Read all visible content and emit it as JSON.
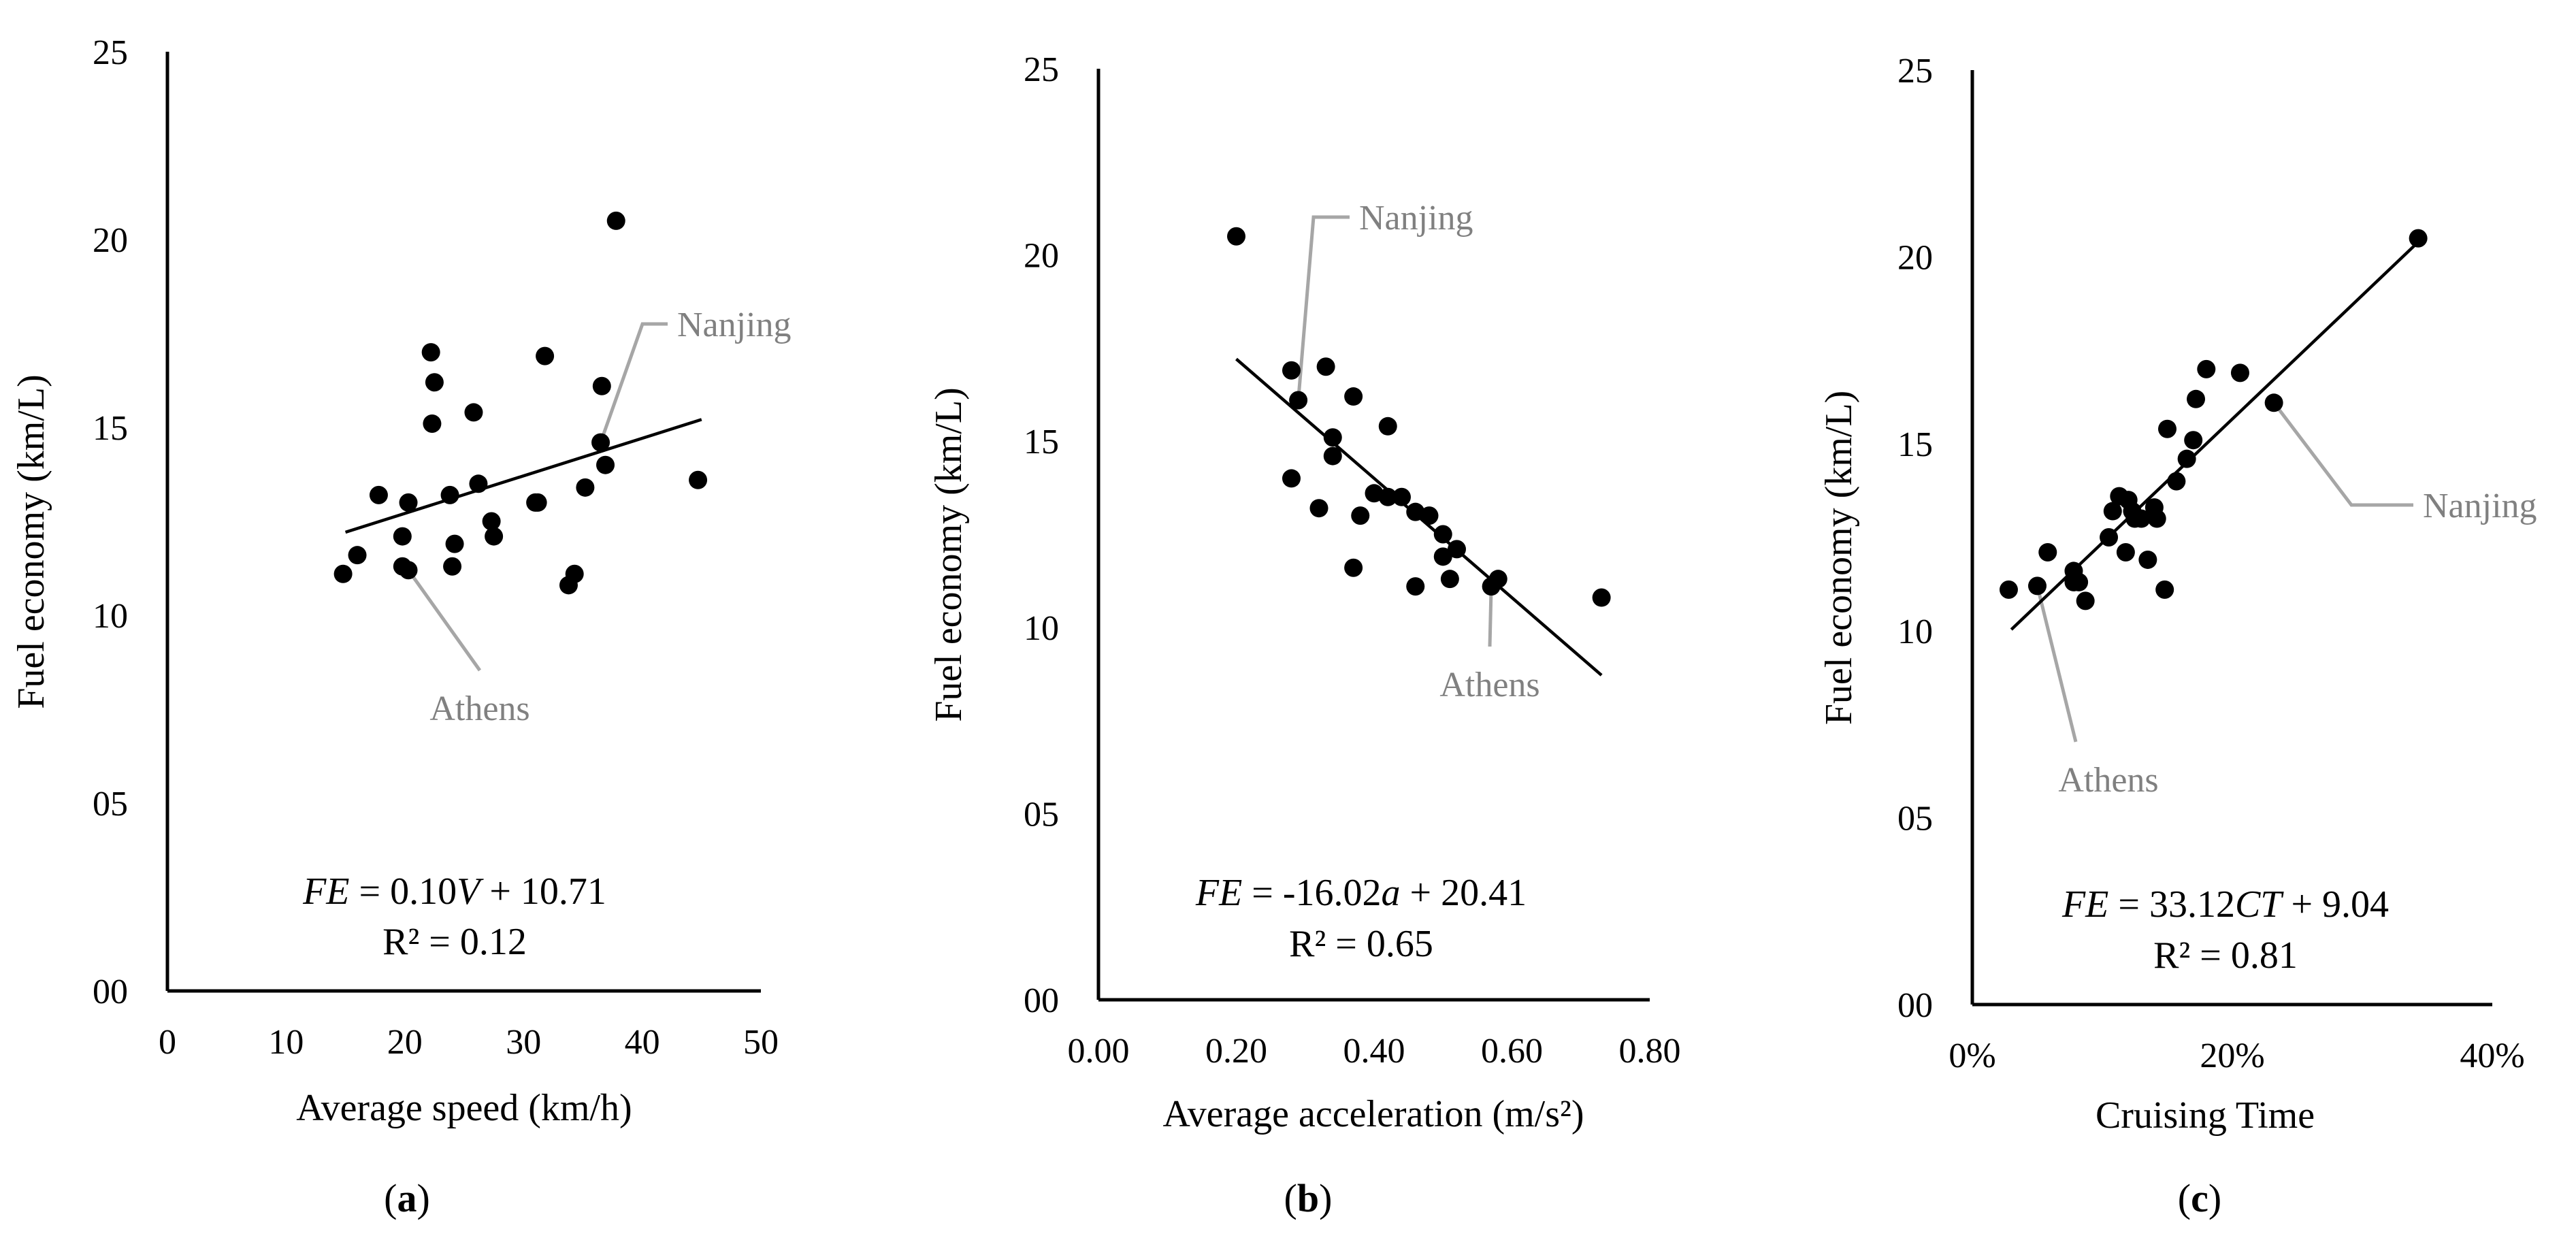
{
  "chart_data": [
    {
      "type": "scatter",
      "panel_label": "a",
      "title": "",
      "xlabel": "Average speed (km/h)",
      "ylabel": "Fuel economy (km/L)",
      "xlim": [
        0,
        50
      ],
      "ylim": [
        0,
        25
      ],
      "x_ticks": [
        0,
        10,
        20,
        30,
        40,
        50
      ],
      "x_tick_labels": [
        "0",
        "10",
        "20",
        "30",
        "40",
        "50"
      ],
      "y_ticks": [
        0,
        5,
        10,
        15,
        20,
        25
      ],
      "y_tick_labels": [
        "00",
        "05",
        "10",
        "15",
        "20",
        "25"
      ],
      "points": [
        [
          14.8,
          11.1
        ],
        [
          16.0,
          11.6
        ],
        [
          17.8,
          13.2
        ],
        [
          19.8,
          12.1
        ],
        [
          19.8,
          11.3
        ],
        [
          20.3,
          11.2
        ],
        [
          20.3,
          13.0
        ],
        [
          22.2,
          17.0
        ],
        [
          22.3,
          15.1
        ],
        [
          22.5,
          16.2
        ],
        [
          23.8,
          13.2
        ],
        [
          24.0,
          11.3
        ],
        [
          24.2,
          11.9
        ],
        [
          25.8,
          15.4
        ],
        [
          26.2,
          13.5
        ],
        [
          27.3,
          12.5
        ],
        [
          27.5,
          12.1
        ],
        [
          31.0,
          13.0
        ],
        [
          31.2,
          13.0
        ],
        [
          31.8,
          16.9
        ],
        [
          33.8,
          10.8
        ],
        [
          34.3,
          11.1
        ],
        [
          35.2,
          13.4
        ],
        [
          36.5,
          14.6
        ],
        [
          36.6,
          16.1
        ],
        [
          36.9,
          14.0
        ],
        [
          37.8,
          20.5
        ],
        [
          44.7,
          13.6
        ]
      ],
      "trendline": {
        "slope": 0.1,
        "intercept": 10.71,
        "x_range": [
          15,
          45
        ]
      },
      "equation": {
        "lhs": "FE",
        "mid": " = 0.10",
        "var": "V",
        "rhs": " + 10.71"
      },
      "r_squared": "R² = 0.12",
      "annotations": [
        {
          "text": "Nanjing",
          "point": [
            36.5,
            14.6
          ]
        },
        {
          "text": "Athens",
          "point": [
            20.3,
            11.2
          ]
        }
      ]
    },
    {
      "type": "scatter",
      "panel_label": "b",
      "title": "",
      "xlabel": "Average acceleration (m/s²)",
      "ylabel": "Fuel economy (km/L)",
      "xlim": [
        0,
        0.8
      ],
      "ylim": [
        0,
        25
      ],
      "x_ticks": [
        0,
        0.2,
        0.4,
        0.6,
        0.8
      ],
      "x_tick_labels": [
        "0.00",
        "0.20",
        "0.40",
        "0.60",
        "0.80"
      ],
      "y_ticks": [
        0,
        5,
        10,
        15,
        20,
        25
      ],
      "y_tick_labels": [
        "00",
        "05",
        "10",
        "15",
        "20",
        "25"
      ],
      "points": [
        [
          0.2,
          20.5
        ],
        [
          0.28,
          16.9
        ],
        [
          0.29,
          16.1
        ],
        [
          0.28,
          14.0
        ],
        [
          0.32,
          13.2
        ],
        [
          0.33,
          17.0
        ],
        [
          0.34,
          15.1
        ],
        [
          0.34,
          14.6
        ],
        [
          0.37,
          16.2
        ],
        [
          0.37,
          11.6
        ],
        [
          0.38,
          13.0
        ],
        [
          0.4,
          13.6
        ],
        [
          0.42,
          13.5
        ],
        [
          0.42,
          15.4
        ],
        [
          0.44,
          13.5
        ],
        [
          0.46,
          13.1
        ],
        [
          0.46,
          11.1
        ],
        [
          0.48,
          13.0
        ],
        [
          0.5,
          12.5
        ],
        [
          0.5,
          11.9
        ],
        [
          0.51,
          11.3
        ],
        [
          0.52,
          12.1
        ],
        [
          0.57,
          11.1
        ],
        [
          0.58,
          11.3
        ],
        [
          0.73,
          10.8
        ]
      ],
      "trendline": {
        "slope": -16.02,
        "intercept": 20.41,
        "x_range": [
          0.2,
          0.73
        ]
      },
      "equation": {
        "lhs": "FE",
        "mid": " = -16.02",
        "var": "a",
        "rhs": " + 20.41"
      },
      "r_squared": "R² = 0.65",
      "annotations": [
        {
          "text": "Nanjing",
          "point": [
            0.29,
            16.1
          ]
        },
        {
          "text": "Athens",
          "point": [
            0.57,
            11.1
          ]
        }
      ]
    },
    {
      "type": "scatter",
      "panel_label": "c",
      "title": "",
      "xlabel": "Cruising Time",
      "ylabel": "Fuel economy (km/L)",
      "xlim": [
        0,
        0.4
      ],
      "ylim": [
        0,
        25
      ],
      "x_ticks": [
        0,
        0.2,
        0.4
      ],
      "x_tick_labels": [
        "0%",
        "20%",
        "40%"
      ],
      "y_ticks": [
        0,
        5,
        10,
        15,
        20,
        25
      ],
      "y_tick_labels": [
        "00",
        "05",
        "10",
        "15",
        "20",
        "25"
      ],
      "points": [
        [
          0.028,
          11.1
        ],
        [
          0.05,
          11.2
        ],
        [
          0.058,
          12.1
        ],
        [
          0.078,
          11.3
        ],
        [
          0.078,
          11.6
        ],
        [
          0.082,
          11.3
        ],
        [
          0.087,
          10.8
        ],
        [
          0.105,
          12.5
        ],
        [
          0.108,
          13.2
        ],
        [
          0.113,
          13.6
        ],
        [
          0.118,
          12.1
        ],
        [
          0.12,
          13.5
        ],
        [
          0.123,
          13.2
        ],
        [
          0.125,
          13.0
        ],
        [
          0.13,
          13.0
        ],
        [
          0.135,
          11.9
        ],
        [
          0.14,
          13.3
        ],
        [
          0.142,
          13.0
        ],
        [
          0.148,
          11.1
        ],
        [
          0.15,
          15.4
        ],
        [
          0.157,
          14.0
        ],
        [
          0.165,
          14.6
        ],
        [
          0.17,
          15.1
        ],
        [
          0.172,
          16.2
        ],
        [
          0.18,
          17.0
        ],
        [
          0.206,
          16.9
        ],
        [
          0.232,
          16.1
        ],
        [
          0.343,
          20.5
        ]
      ],
      "trendline": {
        "slope": 33.12,
        "intercept": 9.04,
        "x_range": [
          0.03,
          0.345
        ]
      },
      "equation": {
        "lhs": "FE",
        "mid": " = 33.12",
        "var": "CT",
        "rhs": " + 9.04"
      },
      "r_squared": "R² = 0.81",
      "annotations": [
        {
          "text": "Nanjing",
          "point": [
            0.232,
            16.1
          ]
        },
        {
          "text": "Athens",
          "point": [
            0.05,
            11.2
          ]
        }
      ]
    }
  ]
}
